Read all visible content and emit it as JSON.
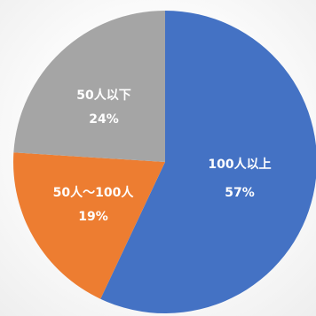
{
  "chart_data": {
    "type": "pie",
    "start_angle_deg": 0,
    "direction": "clockwise",
    "legend": "none",
    "slices": [
      {
        "label": "100人以上",
        "value": 57,
        "value_label": "57%",
        "color": "#4472C4"
      },
      {
        "label": "50人～100人",
        "value": 19,
        "value_label": "19%",
        "color": "#ED7D31"
      },
      {
        "label": "50人以下",
        "value": 24,
        "value_label": "24%",
        "color": "#A5A5A5"
      }
    ]
  }
}
